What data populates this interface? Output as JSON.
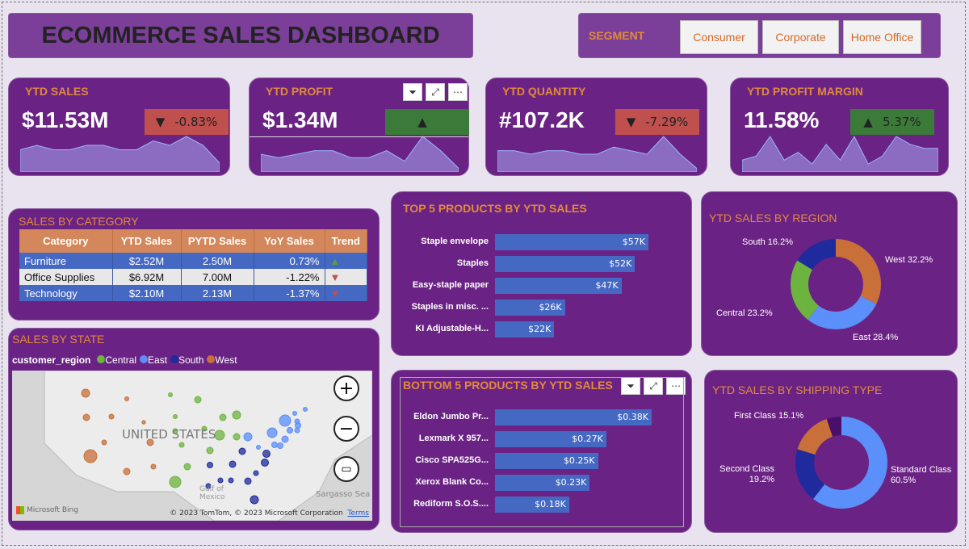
{
  "header": {
    "title": "ECOMMERCE SALES DASHBOARD"
  },
  "segment": {
    "label": "SEGMENT",
    "options": [
      "Consumer",
      "Corporate",
      "Home Office"
    ]
  },
  "kpis": [
    {
      "title": "YTD SALES",
      "value": "$11.53M",
      "delta": "-0.83%",
      "direction": "down",
      "delta_color": "#c0504d",
      "spark": [
        5,
        6,
        5,
        5,
        6,
        6,
        5,
        5,
        7,
        6,
        8,
        6,
        2
      ]
    },
    {
      "title": "YTD PROFIT",
      "value": "$1.34M",
      "delta": "",
      "direction": "up",
      "delta_color": "#3c7a3a",
      "spark": [
        5,
        4,
        5,
        6,
        6,
        4,
        4,
        6,
        3,
        10,
        6,
        1
      ]
    },
    {
      "title": "YTD QUANTITY",
      "value": "#107.2K",
      "delta": "-7.29%",
      "direction": "down",
      "delta_color": "#c0504d",
      "spark": [
        6,
        6,
        5,
        6,
        6,
        5,
        5,
        7,
        6,
        5,
        10,
        5,
        1
      ]
    },
    {
      "title": "YTD PROFIT MARGIN",
      "value": "11.58%",
      "delta": "5.37%",
      "direction": "up",
      "delta_color": "#3c7a3a",
      "spark": [
        3,
        4,
        9,
        3,
        5,
        2,
        7,
        3,
        9,
        2,
        4,
        9,
        7,
        6,
        6
      ]
    }
  ],
  "category": {
    "title": "SALES BY CATEGORY",
    "columns": [
      "Category",
      "YTD Sales",
      "PYTD Sales",
      "YoY Sales",
      "Trend"
    ],
    "rows": [
      {
        "category": "Furniture",
        "ytd": "$2.52M",
        "pytd": "2.50M",
        "yoy": "0.73%",
        "trend": "▲",
        "trend_color": "#5a9a4a"
      },
      {
        "category": "Office Supplies",
        "ytd": "$6.92M",
        "pytd": "7.00M",
        "yoy": "-1.22%",
        "trend": "▼",
        "trend_color": "#c0504d"
      },
      {
        "category": "Technology",
        "ytd": "$2.10M",
        "pytd": "2.13M",
        "yoy": "-1.37%",
        "trend": "▼",
        "trend_color": "#c0504d"
      }
    ]
  },
  "state_map": {
    "title": "SALES BY STATE",
    "legend_title": "customer_region",
    "legend": [
      {
        "label": "Central",
        "color": "#6db33f"
      },
      {
        "label": "East",
        "color": "#5b8ff9"
      },
      {
        "label": "South",
        "color": "#1f2a9c"
      },
      {
        "label": "West",
        "color": "#c86f3a"
      }
    ],
    "country_label": "UNITED STATES",
    "sea_label": "Sargasso Sea",
    "gulf_label": "Gulf of Mexico",
    "brand": "Microsoft Bing",
    "attribution": "© 2023 TomTom, © 2023 Microsoft Corporation",
    "terms": "Terms"
  },
  "top5": {
    "title": "TOP 5 PRODUCTS BY YTD SALES",
    "items": [
      {
        "name": "Staple envelope",
        "value": 57,
        "label": "$57K"
      },
      {
        "name": "Staples",
        "value": 52,
        "label": "$52K"
      },
      {
        "name": "Easy-staple paper",
        "value": 47,
        "label": "$47K"
      },
      {
        "name": "Staples in misc. ...",
        "value": 26,
        "label": "$26K"
      },
      {
        "name": "KI Adjustable-H...",
        "value": 22,
        "label": "$22K"
      }
    ]
  },
  "bottom5": {
    "title": "BOTTOM 5 PRODUCTS BY YTD SALES",
    "items": [
      {
        "name": "Eldon Jumbo Pr...",
        "value": 0.38,
        "label": "$0.38K"
      },
      {
        "name": "Lexmark X 957...",
        "value": 0.27,
        "label": "$0.27K"
      },
      {
        "name": "Cisco SPA525G...",
        "value": 0.25,
        "label": "$0.25K"
      },
      {
        "name": "Xerox Blank Co...",
        "value": 0.23,
        "label": "$0.23K"
      },
      {
        "name": "Rediform S.O.S....",
        "value": 0.18,
        "label": "$0.18K"
      }
    ]
  },
  "chart_data": [
    {
      "type": "pie",
      "title": "YTD SALES BY REGION",
      "categories": [
        "West",
        "East",
        "Central",
        "South"
      ],
      "values": [
        32.2,
        28.4,
        23.2,
        16.2
      ],
      "colors": [
        "#c86f3a",
        "#5b8ff9",
        "#6db33f",
        "#1f2a9c"
      ],
      "labels": [
        "West 32.2%",
        "East 28.4%",
        "Central 23.2%",
        "South 16.2%"
      ]
    },
    {
      "type": "pie",
      "title": "YTD SALES BY SHIPPING TYPE",
      "categories": [
        "Standard Class",
        "Second Class",
        "First Class",
        ""
      ],
      "values": [
        60.5,
        19.2,
        15.1,
        5.2
      ],
      "colors": [
        "#5b8ff9",
        "#1f2a9c",
        "#c86f3a",
        "#4a0f6a"
      ],
      "labels": [
        "Standard Class 60.5%",
        "Second Class 19.2%",
        "First Class 15.1%",
        ""
      ]
    }
  ]
}
